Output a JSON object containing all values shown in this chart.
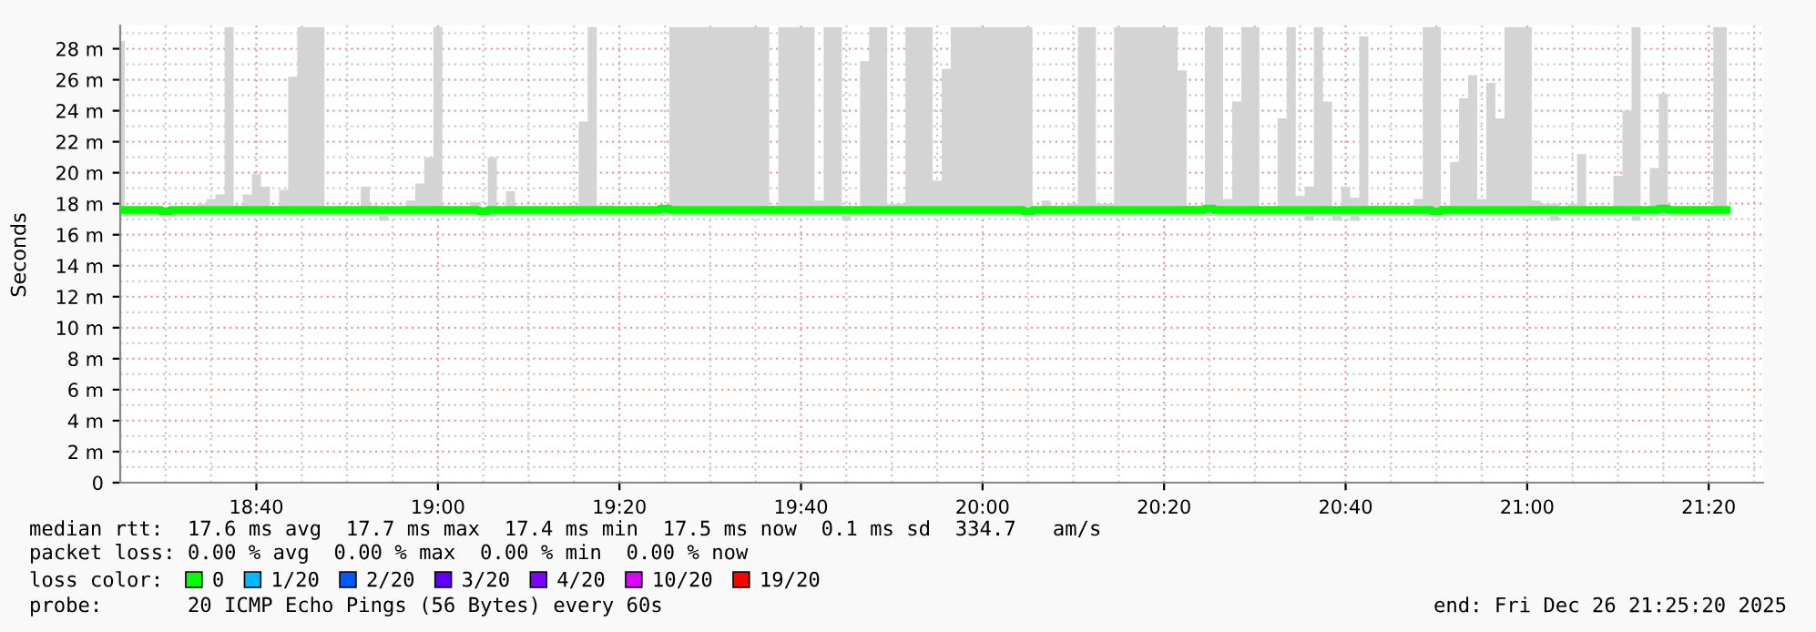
{
  "chart_data": {
    "type": "line",
    "ylabel": "Seconds",
    "legend_title": "loss color:",
    "legend": "bottom",
    "grid": true,
    "xlim": [
      "2025-12-26T18:25",
      "2025-12-26T21:26"
    ],
    "xticks": [
      {
        "value": "2025-12-26T18:40",
        "label": "18:40"
      },
      {
        "value": "2025-12-26T19:00",
        "label": "19:00"
      },
      {
        "value": "2025-12-26T19:20",
        "label": "19:20"
      },
      {
        "value": "2025-12-26T19:40",
        "label": "19:40"
      },
      {
        "value": "2025-12-26T20:00",
        "label": "20:00"
      },
      {
        "value": "2025-12-26T20:20",
        "label": "20:20"
      },
      {
        "value": "2025-12-26T20:40",
        "label": "20:40"
      },
      {
        "value": "2025-12-26T21:00",
        "label": "21:00"
      },
      {
        "value": "2025-12-26T21:20",
        "label": "21:20"
      }
    ],
    "ylim": [
      0,
      29.5
    ],
    "yticks": [
      0,
      {
        "value": 2,
        "label": "2 m"
      },
      {
        "value": 4,
        "label": "4 m"
      },
      {
        "value": 6,
        "label": "6 m"
      },
      {
        "value": 8,
        "label": "8 m"
      },
      {
        "value": 10,
        "label": "10 m"
      },
      {
        "value": 12,
        "label": "12 m"
      },
      {
        "value": 14,
        "label": "14 m"
      },
      {
        "value": 16,
        "label": "16 m"
      },
      {
        "value": 18,
        "label": "18 m"
      },
      {
        "value": 20,
        "label": "20 m"
      },
      {
        "value": 22,
        "label": "22 m"
      },
      {
        "value": 24,
        "label": "24 m"
      },
      {
        "value": 26,
        "label": "26 m"
      },
      {
        "value": 28,
        "label": "28 m"
      }
    ],
    "x": [
      "2025-12-26T18:25",
      "2025-12-26T18:26",
      "2025-12-26T18:27",
      "2025-12-26T18:28",
      "2025-12-26T18:29",
      "2025-12-26T18:30",
      "2025-12-26T18:31",
      "2025-12-26T18:32",
      "2025-12-26T18:33",
      "2025-12-26T18:34",
      "2025-12-26T18:35",
      "2025-12-26T18:36",
      "2025-12-26T18:37",
      "2025-12-26T18:38",
      "2025-12-26T18:39",
      "2025-12-26T18:40",
      "2025-12-26T18:41",
      "2025-12-26T18:42",
      "2025-12-26T18:43",
      "2025-12-26T18:44",
      "2025-12-26T18:45",
      "2025-12-26T18:46",
      "2025-12-26T18:47",
      "2025-12-26T18:48",
      "2025-12-26T18:49",
      "2025-12-26T18:50",
      "2025-12-26T18:51",
      "2025-12-26T18:52",
      "2025-12-26T18:53",
      "2025-12-26T18:54",
      "2025-12-26T18:55",
      "2025-12-26T18:56",
      "2025-12-26T18:57",
      "2025-12-26T18:58",
      "2025-12-26T18:59",
      "2025-12-26T19:00",
      "2025-12-26T19:01",
      "2025-12-26T19:02",
      "2025-12-26T19:03",
      "2025-12-26T19:04",
      "2025-12-26T19:05",
      "2025-12-26T19:06",
      "2025-12-26T19:07",
      "2025-12-26T19:08",
      "2025-12-26T19:09",
      "2025-12-26T19:10",
      "2025-12-26T19:11",
      "2025-12-26T19:12",
      "2025-12-26T19:13",
      "2025-12-26T19:14",
      "2025-12-26T19:15",
      "2025-12-26T19:16",
      "2025-12-26T19:17",
      "2025-12-26T19:18",
      "2025-12-26T19:19",
      "2025-12-26T19:20",
      "2025-12-26T19:21",
      "2025-12-26T19:22",
      "2025-12-26T19:23",
      "2025-12-26T19:24",
      "2025-12-26T19:25",
      "2025-12-26T19:26",
      "2025-12-26T19:27",
      "2025-12-26T19:28",
      "2025-12-26T19:29",
      "2025-12-26T19:30",
      "2025-12-26T19:31",
      "2025-12-26T19:32",
      "2025-12-26T19:33",
      "2025-12-26T19:34",
      "2025-12-26T19:35",
      "2025-12-26T19:36",
      "2025-12-26T19:37",
      "2025-12-26T19:38",
      "2025-12-26T19:39",
      "2025-12-26T19:40",
      "2025-12-26T19:41",
      "2025-12-26T19:42",
      "2025-12-26T19:43",
      "2025-12-26T19:44",
      "2025-12-26T19:45",
      "2025-12-26T19:46",
      "2025-12-26T19:47",
      "2025-12-26T19:48",
      "2025-12-26T19:49",
      "2025-12-26T19:50",
      "2025-12-26T19:51",
      "2025-12-26T19:52",
      "2025-12-26T19:53",
      "2025-12-26T19:54",
      "2025-12-26T19:55",
      "2025-12-26T19:56",
      "2025-12-26T19:57",
      "2025-12-26T19:58",
      "2025-12-26T19:59",
      "2025-12-26T20:00",
      "2025-12-26T20:01",
      "2025-12-26T20:02",
      "2025-12-26T20:03",
      "2025-12-26T20:04",
      "2025-12-26T20:05",
      "2025-12-26T20:06",
      "2025-12-26T20:07",
      "2025-12-26T20:08",
      "2025-12-26T20:09",
      "2025-12-26T20:10",
      "2025-12-26T20:11",
      "2025-12-26T20:12",
      "2025-12-26T20:13",
      "2025-12-26T20:14",
      "2025-12-26T20:15",
      "2025-12-26T20:16",
      "2025-12-26T20:17",
      "2025-12-26T20:18",
      "2025-12-26T20:19",
      "2025-12-26T20:20",
      "2025-12-26T20:21",
      "2025-12-26T20:22",
      "2025-12-26T20:23",
      "2025-12-26T20:24",
      "2025-12-26T20:25",
      "2025-12-26T20:26",
      "2025-12-26T20:27",
      "2025-12-26T20:28",
      "2025-12-26T20:29",
      "2025-12-26T20:30",
      "2025-12-26T20:31",
      "2025-12-26T20:32",
      "2025-12-26T20:33",
      "2025-12-26T20:34",
      "2025-12-26T20:35",
      "2025-12-26T20:36",
      "2025-12-26T20:37",
      "2025-12-26T20:38",
      "2025-12-26T20:39",
      "2025-12-26T20:40",
      "2025-12-26T20:41",
      "2025-12-26T20:42",
      "2025-12-26T20:43",
      "2025-12-26T20:44",
      "2025-12-26T20:45",
      "2025-12-26T20:46",
      "2025-12-26T20:47",
      "2025-12-26T20:48",
      "2025-12-26T20:49",
      "2025-12-26T20:50",
      "2025-12-26T20:51",
      "2025-12-26T20:52",
      "2025-12-26T20:53",
      "2025-12-26T20:54",
      "2025-12-26T20:55",
      "2025-12-26T20:56",
      "2025-12-26T20:57",
      "2025-12-26T20:58",
      "2025-12-26T20:59",
      "2025-12-26T21:00",
      "2025-12-26T21:01",
      "2025-12-26T21:02",
      "2025-12-26T21:03",
      "2025-12-26T21:04",
      "2025-12-26T21:05",
      "2025-12-26T21:06",
      "2025-12-26T21:07",
      "2025-12-26T21:08",
      "2025-12-26T21:09",
      "2025-12-26T21:10",
      "2025-12-26T21:11",
      "2025-12-26T21:12",
      "2025-12-26T21:13",
      "2025-12-26T21:14",
      "2025-12-26T21:15",
      "2025-12-26T21:16",
      "2025-12-26T21:17",
      "2025-12-26T21:18",
      "2025-12-26T21:19",
      "2025-12-26T21:20",
      "2025-12-26T21:21",
      "2025-12-26T21:22"
    ],
    "series": [
      {
        "name": "0",
        "color": "#00ff00",
        "values": [
          17.6,
          17.6,
          17.6,
          17.6,
          17.6,
          17.5,
          17.6,
          17.6,
          17.6,
          17.6,
          17.6,
          17.6,
          17.6,
          17.6,
          17.6,
          17.6,
          17.6,
          17.6,
          17.6,
          17.6,
          17.6,
          17.6,
          17.6,
          17.6,
          17.6,
          17.6,
          17.6,
          17.6,
          17.6,
          17.6,
          17.6,
          17.6,
          17.6,
          17.6,
          17.6,
          17.6,
          17.6,
          17.6,
          17.6,
          17.6,
          17.5,
          17.6,
          17.6,
          17.6,
          17.6,
          17.6,
          17.6,
          17.6,
          17.6,
          17.6,
          17.6,
          17.6,
          17.6,
          17.6,
          17.6,
          17.6,
          17.6,
          17.6,
          17.6,
          17.6,
          17.7,
          17.6,
          17.6,
          17.6,
          17.6,
          17.6,
          17.6,
          17.6,
          17.6,
          17.6,
          17.6,
          17.6,
          17.6,
          17.6,
          17.6,
          17.6,
          17.6,
          17.6,
          17.6,
          17.6,
          17.6,
          17.6,
          17.6,
          17.6,
          17.6,
          17.6,
          17.6,
          17.6,
          17.6,
          17.6,
          17.6,
          17.6,
          17.6,
          17.6,
          17.6,
          17.6,
          17.6,
          17.6,
          17.6,
          17.6,
          17.5,
          17.6,
          17.6,
          17.6,
          17.6,
          17.6,
          17.6,
          17.6,
          17.6,
          17.6,
          17.6,
          17.6,
          17.6,
          17.6,
          17.6,
          17.6,
          17.6,
          17.6,
          17.6,
          17.6,
          17.7,
          17.6,
          17.6,
          17.6,
          17.6,
          17.6,
          17.6,
          17.6,
          17.6,
          17.6,
          17.6,
          17.6,
          17.6,
          17.6,
          17.6,
          17.6,
          17.6,
          17.6,
          17.6,
          17.6,
          17.6,
          17.6,
          17.6,
          17.6,
          17.6,
          17.5,
          17.6,
          17.6,
          17.6,
          17.6,
          17.6,
          17.6,
          17.6,
          17.6,
          17.6,
          17.6,
          17.6,
          17.6,
          17.6,
          17.6,
          17.6,
          17.6,
          17.6,
          17.6,
          17.6,
          17.6,
          17.6,
          17.6,
          17.6,
          17.6,
          17.7,
          17.6,
          17.6,
          17.6,
          17.6,
          17.6,
          17.6,
          17.6
        ],
        "lower": [
          17.2,
          17.2,
          17.2,
          17.2,
          17.2,
          17.2,
          17.2,
          17.2,
          17.2,
          17.2,
          17.2,
          17.2,
          17.2,
          17.2,
          17.2,
          17.2,
          17.2,
          17.2,
          17.2,
          17.2,
          17.2,
          17.2,
          17.2,
          17.2,
          17.2,
          17.2,
          17.2,
          17.2,
          17.2,
          16.9,
          17.2,
          17.2,
          17.2,
          17.2,
          17.2,
          17.2,
          17.2,
          17.2,
          17.2,
          17.2,
          17.2,
          17.2,
          17.2,
          17.2,
          17.2,
          17.2,
          17.2,
          17.2,
          17.2,
          17.2,
          17.2,
          17.2,
          17.2,
          17.2,
          17.2,
          17.2,
          17.2,
          17.2,
          17.2,
          17.2,
          17.2,
          17.2,
          17.2,
          17.2,
          17.2,
          17.2,
          17.2,
          17.2,
          17.2,
          17.2,
          17.2,
          17.2,
          17.2,
          17.2,
          17.2,
          17.2,
          17.2,
          17.2,
          17.2,
          17.2,
          16.9,
          17.2,
          17.2,
          17.2,
          17.2,
          17.2,
          17.2,
          17.2,
          17.2,
          17.2,
          17.2,
          17.2,
          17.2,
          17.2,
          17.2,
          17.2,
          17.2,
          17.2,
          17.2,
          17.2,
          17.2,
          17.2,
          17.2,
          17.2,
          17.2,
          17.2,
          17.2,
          17.2,
          17.2,
          17.2,
          17.2,
          17.2,
          17.2,
          17.2,
          17.2,
          17.2,
          17.2,
          17.2,
          17.2,
          17.2,
          17.2,
          17.2,
          17.2,
          17.2,
          17.2,
          17.2,
          17.2,
          17.2,
          17.2,
          17.2,
          17.2,
          16.9,
          17.2,
          17.2,
          16.9,
          17.2,
          16.9,
          17.2,
          17.2,
          17.2,
          17.2,
          17.2,
          17.2,
          17.2,
          17.2,
          17.2,
          17.2,
          17.2,
          17.2,
          17.2,
          17.2,
          17.2,
          17.2,
          17.2,
          17.2,
          17.2,
          17.2,
          17.2,
          16.9,
          17.2,
          17.2,
          17.2,
          17.2,
          17.2,
          17.2,
          17.2,
          17.2,
          16.9,
          17.2,
          17.2,
          17.2,
          17.2,
          17.2,
          17.2,
          17.2,
          17.2,
          17.2,
          17.2
        ],
        "upper": [
          28.5,
          17.8,
          17.8,
          17.8,
          17.8,
          17.8,
          17.8,
          17.8,
          17.8,
          18.0,
          18.3,
          18.6,
          29.4,
          17.9,
          18.6,
          19.9,
          19.1,
          17.8,
          18.9,
          26.2,
          29.4,
          29.4,
          29.4,
          17.8,
          17.8,
          17.8,
          17.8,
          19.1,
          17.9,
          17.6,
          17.8,
          17.8,
          18.2,
          19.3,
          21.0,
          29.4,
          17.8,
          17.8,
          17.8,
          18.1,
          17.8,
          21.0,
          17.8,
          18.8,
          17.8,
          17.8,
          17.8,
          17.7,
          17.7,
          17.7,
          17.9,
          23.3,
          29.4,
          17.9,
          17.9,
          17.8,
          17.8,
          17.8,
          17.8,
          17.8,
          17.8,
          29.4,
          29.4,
          29.4,
          29.4,
          29.4,
          29.4,
          29.4,
          29.4,
          29.4,
          29.4,
          29.4,
          17.9,
          29.4,
          29.4,
          29.4,
          29.4,
          18.2,
          29.4,
          29.4,
          17.8,
          17.8,
          27.2,
          29.4,
          29.4,
          18.0,
          18.0,
          29.4,
          29.4,
          29.4,
          19.5,
          26.7,
          29.4,
          29.4,
          29.4,
          29.4,
          29.4,
          29.4,
          29.4,
          29.4,
          29.4,
          17.8,
          18.2,
          17.9,
          17.9,
          18.0,
          29.4,
          29.4,
          18.0,
          18.0,
          29.4,
          29.4,
          29.4,
          29.4,
          29.4,
          29.4,
          29.4,
          26.6,
          17.9,
          17.9,
          29.4,
          29.4,
          18.3,
          24.6,
          29.4,
          29.4,
          17.8,
          17.8,
          23.5,
          29.4,
          18.5,
          19.1,
          29.4,
          24.6,
          17.8,
          19.1,
          18.4,
          28.8,
          17.9,
          17.9,
          17.9,
          17.9,
          17.9,
          18.3,
          29.4,
          29.4,
          17.9,
          20.7,
          24.8,
          26.3,
          18.3,
          25.8,
          23.5,
          29.4,
          29.4,
          29.4,
          18.2,
          18.0,
          18.0,
          17.8,
          18.0,
          21.2,
          17.8,
          17.8,
          17.8,
          19.8,
          24.0,
          29.4,
          17.8,
          20.3,
          25.1,
          17.8,
          17.8,
          17.8,
          17.8,
          17.8,
          29.4,
          29.4
        ]
      },
      {
        "name": "1/20",
        "color": "#00b8ff",
        "values": [
          null,
          null,
          null,
          null,
          null,
          null,
          null,
          null,
          null,
          null,
          null,
          null,
          null,
          null,
          null,
          null,
          null,
          null,
          null,
          null,
          null,
          null,
          null,
          null,
          null,
          null,
          null,
          null,
          null,
          null,
          null,
          null,
          null,
          null,
          null,
          null,
          null,
          null,
          null,
          null,
          null,
          null,
          null,
          null,
          null,
          null,
          null,
          null,
          null,
          null,
          null,
          null,
          null,
          null,
          null,
          null,
          null,
          null,
          null,
          null,
          null,
          null,
          null,
          null,
          null,
          null,
          null,
          null,
          null,
          null,
          null,
          null,
          null,
          null,
          null,
          null,
          null,
          null,
          null,
          null,
          null,
          null,
          null,
          null,
          null,
          null,
          null,
          null,
          null,
          null,
          null,
          null,
          null,
          null,
          null,
          null,
          null,
          null,
          null,
          null,
          null,
          null,
          null,
          null,
          null,
          null,
          null,
          null,
          null,
          null,
          null,
          null,
          null,
          null,
          null,
          null,
          null,
          null,
          null,
          null,
          null,
          null,
          null,
          null,
          null,
          null,
          null,
          null,
          null,
          null,
          null,
          null,
          null,
          null,
          null,
          null,
          null,
          null,
          null,
          null,
          null,
          null,
          null,
          null,
          null,
          null,
          null,
          null,
          null,
          null,
          null,
          null,
          null,
          null,
          null,
          null,
          null,
          null,
          null,
          null,
          null,
          null,
          null,
          null,
          null,
          null,
          null,
          null,
          null,
          null,
          null,
          null,
          null,
          null,
          null,
          null,
          null,
          null
        ]
      },
      {
        "name": "2/20",
        "color": "#0059ff",
        "values": [
          null,
          null,
          null,
          null,
          null,
          null,
          null,
          null,
          null,
          null,
          null,
          null,
          null,
          null,
          null,
          null,
          null,
          null,
          null,
          null,
          null,
          null,
          null,
          null,
          null,
          null,
          null,
          null,
          null,
          null,
          null,
          null,
          null,
          null,
          null,
          null,
          null,
          null,
          null,
          null,
          null,
          null,
          null,
          null,
          null,
          null,
          null,
          null,
          null,
          null,
          null,
          null,
          null,
          null,
          null,
          null,
          null,
          null,
          null,
          null,
          null,
          null,
          null,
          null,
          null,
          null,
          null,
          null,
          null,
          null,
          null,
          null,
          null,
          null,
          null,
          null,
          null,
          null,
          null,
          null,
          null,
          null,
          null,
          null,
          null,
          null,
          null,
          null,
          null,
          null,
          null,
          null,
          null,
          null,
          null,
          null,
          null,
          null,
          null,
          null,
          null,
          null,
          null,
          null,
          null,
          null,
          null,
          null,
          null,
          null,
          null,
          null,
          null,
          null,
          null,
          null,
          null,
          null,
          null,
          null,
          null,
          null,
          null,
          null,
          null,
          null,
          null,
          null,
          null,
          null,
          null,
          null,
          null,
          null,
          null,
          null,
          null,
          null,
          null,
          null,
          null,
          null,
          null,
          null,
          null,
          null,
          null,
          null,
          null,
          null,
          null,
          null,
          null,
          null,
          null,
          null,
          null,
          null,
          null,
          null,
          null,
          null,
          null,
          null,
          null,
          null,
          null,
          null,
          null,
          null,
          null,
          null,
          null,
          null,
          null,
          null,
          null,
          null
        ]
      },
      {
        "name": "3/20",
        "color": "#5e00ff",
        "values": [
          null,
          null,
          null,
          null,
          null,
          null,
          null,
          null,
          null,
          null,
          null,
          null,
          null,
          null,
          null,
          null,
          null,
          null,
          null,
          null,
          null,
          null,
          null,
          null,
          null,
          null,
          null,
          null,
          null,
          null,
          null,
          null,
          null,
          null,
          null,
          null,
          null,
          null,
          null,
          null,
          null,
          null,
          null,
          null,
          null,
          null,
          null,
          null,
          null,
          null,
          null,
          null,
          null,
          null,
          null,
          null,
          null,
          null,
          null,
          null,
          null,
          null,
          null,
          null,
          null,
          null,
          null,
          null,
          null,
          null,
          null,
          null,
          null,
          null,
          null,
          null,
          null,
          null,
          null,
          null,
          null,
          null,
          null,
          null,
          null,
          null,
          null,
          null,
          null,
          null,
          null,
          null,
          null,
          null,
          null,
          null,
          null,
          null,
          null,
          null,
          null,
          null,
          null,
          null,
          null,
          null,
          null,
          null,
          null,
          null,
          null,
          null,
          null,
          null,
          null,
          null,
          null,
          null,
          null,
          null,
          null,
          null,
          null,
          null,
          null,
          null,
          null,
          null,
          null,
          null,
          null,
          null,
          null,
          null,
          null,
          null,
          null,
          null,
          null,
          null,
          null,
          null,
          null,
          null,
          null,
          null,
          null,
          null,
          null,
          null,
          null,
          null,
          null,
          null,
          null,
          null,
          null,
          null,
          null,
          null,
          null,
          null,
          null,
          null,
          null,
          null,
          null,
          null,
          null,
          null,
          null,
          null,
          null,
          null,
          null,
          null,
          null,
          null
        ]
      },
      {
        "name": "4/20",
        "color": "#7e00ff",
        "values": [
          null,
          null,
          null,
          null,
          null,
          null,
          null,
          null,
          null,
          null,
          null,
          null,
          null,
          null,
          null,
          null,
          null,
          null,
          null,
          null,
          null,
          null,
          null,
          null,
          null,
          null,
          null,
          null,
          null,
          null,
          null,
          null,
          null,
          null,
          null,
          null,
          null,
          null,
          null,
          null,
          null,
          null,
          null,
          null,
          null,
          null,
          null,
          null,
          null,
          null,
          null,
          null,
          null,
          null,
          null,
          null,
          null,
          null,
          null,
          null,
          null,
          null,
          null,
          null,
          null,
          null,
          null,
          null,
          null,
          null,
          null,
          null,
          null,
          null,
          null,
          null,
          null,
          null,
          null,
          null,
          null,
          null,
          null,
          null,
          null,
          null,
          null,
          null,
          null,
          null,
          null,
          null,
          null,
          null,
          null,
          null,
          null,
          null,
          null,
          null,
          null,
          null,
          null,
          null,
          null,
          null,
          null,
          null,
          null,
          null,
          null,
          null,
          null,
          null,
          null,
          null,
          null,
          null,
          null,
          null,
          null,
          null,
          null,
          null,
          null,
          null,
          null,
          null,
          null,
          null,
          null,
          null,
          null,
          null,
          null,
          null,
          null,
          null,
          null,
          null,
          null,
          null,
          null,
          null,
          null,
          null,
          null,
          null,
          null,
          null,
          null,
          null,
          null,
          null,
          null,
          null,
          null,
          null,
          null,
          null,
          null,
          null,
          null,
          null,
          null,
          null,
          null,
          null,
          null,
          null,
          null,
          null,
          null,
          null,
          null,
          null,
          null,
          null
        ]
      },
      {
        "name": "10/20",
        "color": "#dd00ff",
        "values": [
          null,
          null,
          null,
          null,
          null,
          null,
          null,
          null,
          null,
          null,
          null,
          null,
          null,
          null,
          null,
          null,
          null,
          null,
          null,
          null,
          null,
          null,
          null,
          null,
          null,
          null,
          null,
          null,
          null,
          null,
          null,
          null,
          null,
          null,
          null,
          null,
          null,
          null,
          null,
          null,
          null,
          null,
          null,
          null,
          null,
          null,
          null,
          null,
          null,
          null,
          null,
          null,
          null,
          null,
          null,
          null,
          null,
          null,
          null,
          null,
          null,
          null,
          null,
          null,
          null,
          null,
          null,
          null,
          null,
          null,
          null,
          null,
          null,
          null,
          null,
          null,
          null,
          null,
          null,
          null,
          null,
          null,
          null,
          null,
          null,
          null,
          null,
          null,
          null,
          null,
          null,
          null,
          null,
          null,
          null,
          null,
          null,
          null,
          null,
          null,
          null,
          null,
          null,
          null,
          null,
          null,
          null,
          null,
          null,
          null,
          null,
          null,
          null,
          null,
          null,
          null,
          null,
          null,
          null,
          null,
          null,
          null,
          null,
          null,
          null,
          null,
          null,
          null,
          null,
          null,
          null,
          null,
          null,
          null,
          null,
          null,
          null,
          null,
          null,
          null,
          null,
          null,
          null,
          null,
          null,
          null,
          null,
          null,
          null,
          null,
          null,
          null,
          null,
          null,
          null,
          null,
          null,
          null,
          null,
          null,
          null,
          null,
          null,
          null,
          null,
          null,
          null,
          null,
          null,
          null,
          null,
          null,
          null,
          null,
          null,
          null,
          null,
          null
        ]
      },
      {
        "name": "19/20",
        "color": "#ff0000",
        "values": [
          null,
          null,
          null,
          null,
          null,
          null,
          null,
          null,
          null,
          null,
          null,
          null,
          null,
          null,
          null,
          null,
          null,
          null,
          null,
          null,
          null,
          null,
          null,
          null,
          null,
          null,
          null,
          null,
          null,
          null,
          null,
          null,
          null,
          null,
          null,
          null,
          null,
          null,
          null,
          null,
          null,
          null,
          null,
          null,
          null,
          null,
          null,
          null,
          null,
          null,
          null,
          null,
          null,
          null,
          null,
          null,
          null,
          null,
          null,
          null,
          null,
          null,
          null,
          null,
          null,
          null,
          null,
          null,
          null,
          null,
          null,
          null,
          null,
          null,
          null,
          null,
          null,
          null,
          null,
          null,
          null,
          null,
          null,
          null,
          null,
          null,
          null,
          null,
          null,
          null,
          null,
          null,
          null,
          null,
          null,
          null,
          null,
          null,
          null,
          null,
          null,
          null,
          null,
          null,
          null,
          null,
          null,
          null,
          null,
          null,
          null,
          null,
          null,
          null,
          null,
          null,
          null,
          null,
          null,
          null,
          null,
          null,
          null,
          null,
          null,
          null,
          null,
          null,
          null,
          null,
          null,
          null,
          null,
          null,
          null,
          null,
          null,
          null,
          null,
          null,
          null,
          null,
          null,
          null,
          null,
          null,
          null,
          null,
          null,
          null,
          null,
          null,
          null,
          null,
          null,
          null,
          null,
          null,
          null,
          null,
          null,
          null,
          null,
          null,
          null,
          null,
          null,
          null,
          null,
          null,
          null,
          null,
          null,
          null,
          null,
          null,
          null,
          null
        ]
      }
    ],
    "annotations": [
      "median rtt:  17.6 ms avg  17.7 ms max  17.4 ms min  17.5 ms now  0.1 ms sd  334.7   am/s",
      "packet loss: 0.00 % avg  0.00 % max  0.00 % min  0.00 % now",
      "probe:       20 ICMP Echo Pings (56 Bytes) every 60s",
      "end: Fri Dec 26 21:25:20 2025"
    ]
  }
}
